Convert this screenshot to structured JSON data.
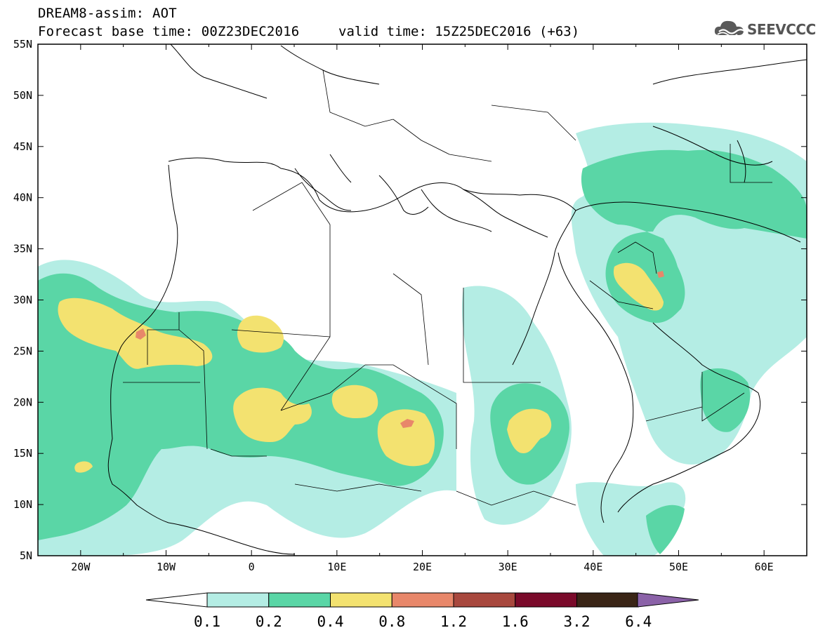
{
  "header": {
    "title": "DREAM8-assim: AOT",
    "base_time": "Forecast base time: 00Z23DEC2016",
    "valid_time": "valid time: 15Z25DEC2016 (+63)",
    "logo": "SEEVCCC"
  },
  "map": {
    "lon_labels": [
      "20W",
      "10W",
      "0",
      "10E",
      "20E",
      "30E",
      "40E",
      "50E",
      "60E"
    ],
    "lat_labels": [
      "55N",
      "50N",
      "45N",
      "40N",
      "35N",
      "30N",
      "25N",
      "20N",
      "15N",
      "10N",
      "5N"
    ],
    "lon_values": [
      -20,
      -10,
      0,
      10,
      20,
      30,
      40,
      50,
      60
    ],
    "lat_values": [
      55,
      50,
      45,
      40,
      35,
      30,
      25,
      20,
      15,
      10,
      5
    ],
    "extent": {
      "lon": [
        -25,
        65
      ],
      "lat": [
        5,
        55
      ]
    }
  },
  "colorbar": {
    "labels": [
      "0.1",
      "0.2",
      "0.4",
      "0.8",
      "1.2",
      "1.6",
      "3.2",
      "6.4"
    ],
    "colors": [
      "#b4ede4",
      "#5ad6a6",
      "#f3e270",
      "#e8876a",
      "#a8483e",
      "#7a0a2a",
      "#3a2516",
      "#8b62a8"
    ]
  }
}
